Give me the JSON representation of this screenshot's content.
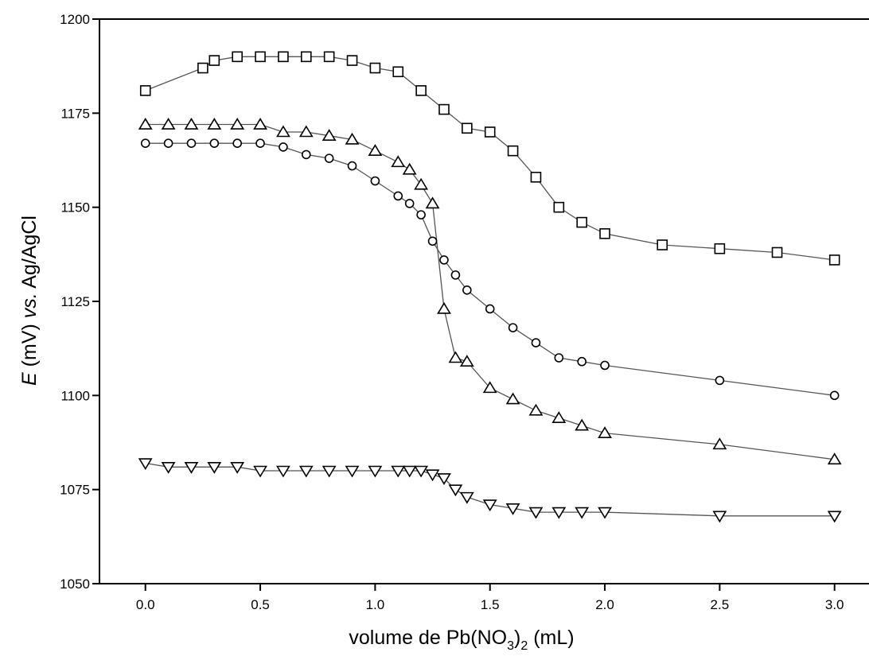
{
  "chart_data": {
    "type": "scatter",
    "xlabel": {
      "prefix": "volume de Pb(NO",
      "sub": "3",
      "mid": ")",
      "sub2": "2",
      "suffix": " (mL)"
    },
    "ylabel": {
      "italic1": "E",
      "text1": " (mV) ",
      "italic2": "vs.",
      "text2": " Ag/AgCl"
    },
    "xlim": [
      -0.2,
      3.15
    ],
    "ylim": [
      1050,
      1200
    ],
    "xticks": [
      0.0,
      0.5,
      1.0,
      1.5,
      2.0,
      2.5,
      3.0
    ],
    "xtick_labels": [
      "0.0",
      "0.5",
      "1.0",
      "1.5",
      "2.0",
      "2.5",
      "3.0"
    ],
    "yticks": [
      1050,
      1075,
      1100,
      1125,
      1150,
      1175,
      1200
    ],
    "ytick_labels": [
      "1050",
      "1075",
      "1100",
      "1125",
      "1150",
      "1175",
      "1200"
    ],
    "grid": false,
    "line_color": "#555555",
    "marker_color": "#000000",
    "series": [
      {
        "marker": "square",
        "x": [
          0.0,
          0.25,
          0.3,
          0.4,
          0.5,
          0.6,
          0.7,
          0.8,
          0.9,
          1.0,
          1.1,
          1.2,
          1.3,
          1.4,
          1.5,
          1.6,
          1.7,
          1.8,
          1.9,
          2.0,
          2.25,
          2.5,
          2.75,
          3.0
        ],
        "y": [
          1181,
          1187,
          1189,
          1190,
          1190,
          1190,
          1190,
          1190,
          1189,
          1187,
          1186,
          1181,
          1176,
          1171,
          1170,
          1165,
          1158,
          1150,
          1146,
          1143,
          1140,
          1139,
          1138,
          1136
        ]
      },
      {
        "marker": "triangle-up",
        "x": [
          0.0,
          0.1,
          0.2,
          0.3,
          0.4,
          0.5,
          0.6,
          0.7,
          0.8,
          0.9,
          1.0,
          1.1,
          1.15,
          1.2,
          1.25,
          1.3,
          1.35,
          1.4,
          1.5,
          1.6,
          1.7,
          1.8,
          1.9,
          2.0,
          2.5,
          3.0
        ],
        "y": [
          1172,
          1172,
          1172,
          1172,
          1172,
          1172,
          1170,
          1170,
          1169,
          1168,
          1165,
          1162,
          1160,
          1156,
          1151,
          1123,
          1110,
          1109,
          1102,
          1099,
          1096,
          1094,
          1092,
          1090,
          1087,
          1083
        ]
      },
      {
        "marker": "circle",
        "x": [
          0.0,
          0.1,
          0.2,
          0.3,
          0.4,
          0.5,
          0.6,
          0.7,
          0.8,
          0.9,
          1.0,
          1.1,
          1.15,
          1.2,
          1.25,
          1.3,
          1.35,
          1.4,
          1.5,
          1.6,
          1.7,
          1.8,
          1.9,
          2.0,
          2.5,
          3.0
        ],
        "y": [
          1167,
          1167,
          1167,
          1167,
          1167,
          1167,
          1166,
          1164,
          1163,
          1161,
          1157,
          1153,
          1151,
          1148,
          1141,
          1136,
          1132,
          1128,
          1123,
          1118,
          1114,
          1110,
          1109,
          1108,
          1104,
          1100
        ]
      },
      {
        "marker": "triangle-down",
        "x": [
          0.0,
          0.1,
          0.2,
          0.3,
          0.4,
          0.5,
          0.6,
          0.7,
          0.8,
          0.9,
          1.0,
          1.1,
          1.15,
          1.2,
          1.25,
          1.3,
          1.35,
          1.4,
          1.5,
          1.6,
          1.7,
          1.8,
          1.9,
          2.0,
          2.5,
          3.0
        ],
        "y": [
          1082,
          1081,
          1081,
          1081,
          1081,
          1080,
          1080,
          1080,
          1080,
          1080,
          1080,
          1080,
          1080,
          1080,
          1079,
          1078,
          1075,
          1073,
          1071,
          1070,
          1069,
          1069,
          1069,
          1069,
          1068,
          1068
        ]
      }
    ]
  }
}
